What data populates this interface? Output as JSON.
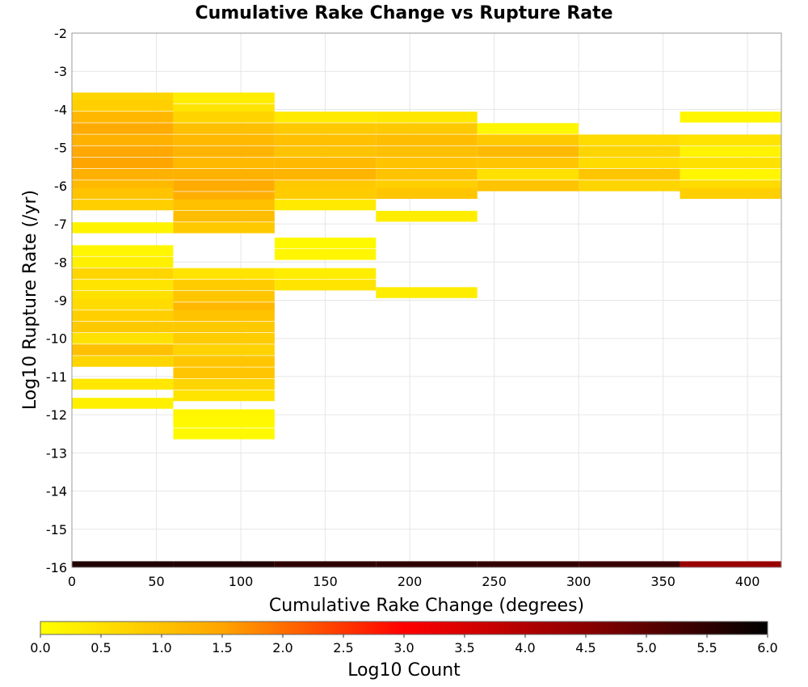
{
  "chart_data": {
    "type": "heatmap",
    "title": "Cumulative Rake Change vs Rupture Rate",
    "xlabel": "Cumulative Rake Change (degrees)",
    "ylabel": "Log10 Rupture Rate (/yr)",
    "xlim": [
      0,
      420
    ],
    "ylim": [
      -16,
      -2
    ],
    "x_bin_width": 60,
    "y_bin_height": 0.2857,
    "xticks": [
      "0",
      "50",
      "100",
      "150",
      "200",
      "250",
      "300",
      "350",
      "400"
    ],
    "yticks": [
      "-2",
      "-3",
      "-4",
      "-5",
      "-6",
      "-7",
      "-8",
      "-9",
      "-10",
      "-11",
      "-12",
      "-13",
      "-14",
      "-15",
      "-16"
    ],
    "grid": true,
    "colorbar": {
      "label": "Log10 Count",
      "range": [
        0,
        6
      ],
      "ticks": [
        "0.0",
        "0.5",
        "1.0",
        "1.5",
        "2.0",
        "2.5",
        "3.0",
        "3.5",
        "4.0",
        "4.5",
        "5.0",
        "5.5",
        "6.0"
      ],
      "colormap": [
        "#ffff00",
        "#ffa500",
        "#ff0000",
        "#8b0000",
        "#000000"
      ]
    },
    "columns": [
      {
        "x": 0,
        "cells": [
          {
            "y": -3.7,
            "v": 0.7
          },
          {
            "y": -3.9,
            "v": 0.8
          },
          {
            "y": -4.2,
            "v": 1.2
          },
          {
            "y": -4.5,
            "v": 1.4
          },
          {
            "y": -4.8,
            "v": 1.3
          },
          {
            "y": -5.1,
            "v": 1.45
          },
          {
            "y": -5.4,
            "v": 1.5
          },
          {
            "y": -5.7,
            "v": 1.3
          },
          {
            "y": -6.0,
            "v": 1.15
          },
          {
            "y": -6.2,
            "v": 1.0
          },
          {
            "y": -6.5,
            "v": 0.8
          },
          {
            "y": -7.1,
            "v": 0.2
          },
          {
            "y": -7.7,
            "v": 0.15
          },
          {
            "y": -8.0,
            "v": 0.25
          },
          {
            "y": -8.3,
            "v": 0.7
          },
          {
            "y": -8.6,
            "v": 0.45
          },
          {
            "y": -8.9,
            "v": 0.5
          },
          {
            "y": -9.1,
            "v": 0.6
          },
          {
            "y": -9.4,
            "v": 0.8
          },
          {
            "y": -9.7,
            "v": 0.9
          },
          {
            "y": -10.0,
            "v": 0.5
          },
          {
            "y": -10.3,
            "v": 1.05
          },
          {
            "y": -10.6,
            "v": 0.7
          },
          {
            "y": -11.2,
            "v": 0.4
          },
          {
            "y": -11.7,
            "v": 0.25
          }
        ]
      },
      {
        "x": 60,
        "cells": [
          {
            "y": -3.7,
            "v": 0.3
          },
          {
            "y": -4.0,
            "v": 0.45
          },
          {
            "y": -4.2,
            "v": 0.7
          },
          {
            "y": -4.5,
            "v": 1.05
          },
          {
            "y": -4.8,
            "v": 1.15
          },
          {
            "y": -5.1,
            "v": 1.25
          },
          {
            "y": -5.4,
            "v": 1.15
          },
          {
            "y": -5.7,
            "v": 1.3
          },
          {
            "y": -6.0,
            "v": 1.4
          },
          {
            "y": -6.3,
            "v": 1.35
          },
          {
            "y": -6.5,
            "v": 1.05
          },
          {
            "y": -6.8,
            "v": 1.1
          },
          {
            "y": -7.1,
            "v": 0.9
          },
          {
            "y": -8.3,
            "v": 0.45
          },
          {
            "y": -8.6,
            "v": 0.85
          },
          {
            "y": -8.9,
            "v": 0.95
          },
          {
            "y": -9.2,
            "v": 1.2
          },
          {
            "y": -9.4,
            "v": 1.0
          },
          {
            "y": -9.7,
            "v": 0.9
          },
          {
            "y": -10.0,
            "v": 0.85
          },
          {
            "y": -10.3,
            "v": 0.75
          },
          {
            "y": -10.6,
            "v": 0.95
          },
          {
            "y": -10.9,
            "v": 0.95
          },
          {
            "y": -11.2,
            "v": 0.7
          },
          {
            "y": -11.5,
            "v": 0.45
          },
          {
            "y": -12.0,
            "v": 0.15
          },
          {
            "y": -12.2,
            "v": 0.1
          },
          {
            "y": -12.5,
            "v": 0.1
          }
        ]
      },
      {
        "x": 120,
        "cells": [
          {
            "y": -4.2,
            "v": 0.35
          },
          {
            "y": -4.5,
            "v": 0.9
          },
          {
            "y": -4.8,
            "v": 1.05
          },
          {
            "y": -5.1,
            "v": 1.0
          },
          {
            "y": -5.4,
            "v": 1.15
          },
          {
            "y": -5.7,
            "v": 1.25
          },
          {
            "y": -6.0,
            "v": 0.9
          },
          {
            "y": -6.2,
            "v": 0.85
          },
          {
            "y": -6.5,
            "v": 0.35
          },
          {
            "y": -7.5,
            "v": 0.1
          },
          {
            "y": -7.8,
            "v": 0.15
          },
          {
            "y": -8.3,
            "v": 0.3
          },
          {
            "y": -8.6,
            "v": 0.45
          }
        ]
      },
      {
        "x": 180,
        "cells": [
          {
            "y": -4.2,
            "v": 0.4
          },
          {
            "y": -4.5,
            "v": 0.9
          },
          {
            "y": -4.8,
            "v": 1.1
          },
          {
            "y": -5.1,
            "v": 1.05
          },
          {
            "y": -5.4,
            "v": 1.0
          },
          {
            "y": -5.7,
            "v": 1.0
          },
          {
            "y": -6.0,
            "v": 0.8
          },
          {
            "y": -6.2,
            "v": 0.95
          },
          {
            "y": -6.8,
            "v": 0.3
          },
          {
            "y": -8.8,
            "v": 0.3
          }
        ]
      },
      {
        "x": 240,
        "cells": [
          {
            "y": -4.5,
            "v": 0.15
          },
          {
            "y": -4.8,
            "v": 0.9
          },
          {
            "y": -5.1,
            "v": 1.15
          },
          {
            "y": -5.4,
            "v": 0.95
          },
          {
            "y": -5.7,
            "v": 0.5
          },
          {
            "y": -6.0,
            "v": 1.0
          }
        ]
      },
      {
        "x": 300,
        "cells": [
          {
            "y": -4.8,
            "v": 0.6
          },
          {
            "y": -5.1,
            "v": 0.7
          },
          {
            "y": -5.4,
            "v": 0.6
          },
          {
            "y": -5.7,
            "v": 0.95
          },
          {
            "y": -6.0,
            "v": 0.7
          }
        ]
      },
      {
        "x": 360,
        "cells": [
          {
            "y": -4.2,
            "v": 0.15
          },
          {
            "y": -4.8,
            "v": 0.45
          },
          {
            "y": -5.1,
            "v": 0.2
          },
          {
            "y": -5.4,
            "v": 0.5
          },
          {
            "y": -5.7,
            "v": 0.15
          },
          {
            "y": -6.0,
            "v": 0.6
          },
          {
            "y": -6.2,
            "v": 0.8
          }
        ]
      }
    ],
    "floor_row": {
      "y": -15.92,
      "cells": [
        {
          "x": 0,
          "v": 5.65
        },
        {
          "x": 60,
          "v": 5.65
        },
        {
          "x": 120,
          "v": 5.5
        },
        {
          "x": 180,
          "v": 5.5
        },
        {
          "x": 240,
          "v": 5.45
        },
        {
          "x": 300,
          "v": 5.4
        },
        {
          "x": 360,
          "v": 4.3
        }
      ]
    }
  }
}
